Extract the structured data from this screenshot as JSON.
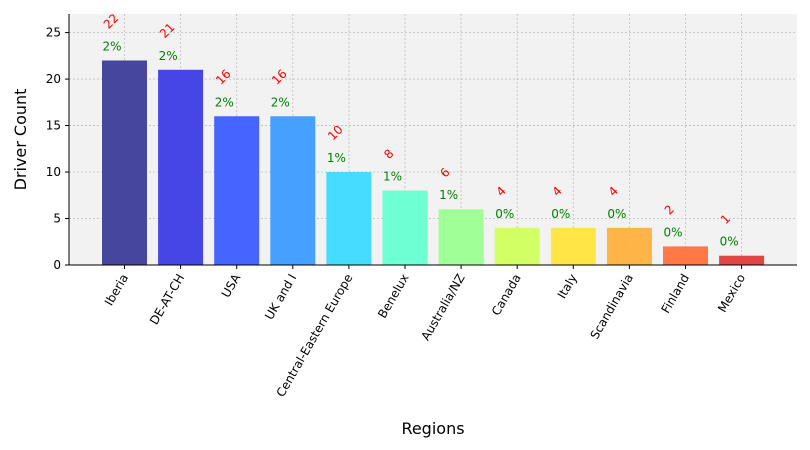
{
  "chart_data": {
    "type": "bar",
    "title": "",
    "xlabel": "Regions",
    "ylabel": "Driver Count",
    "categories": [
      "Iberia",
      "DE-AT-CH",
      "USA",
      "UK and I",
      "Central-Eastern Europe",
      "Benelux",
      "Australia/NZ",
      "Canada",
      "Italy",
      "Scandinavia",
      "Finland",
      "Mexico"
    ],
    "values": [
      22,
      21,
      16,
      16,
      10,
      8,
      6,
      4,
      4,
      4,
      2,
      1
    ],
    "value_labels": [
      "22",
      "21",
      "16",
      "16",
      "10",
      "8",
      "6",
      "4",
      "4",
      "4",
      "2",
      "1"
    ],
    "percent_labels": [
      "2%",
      "2%",
      "2%",
      "2%",
      "1%",
      "1%",
      "1%",
      "0%",
      "0%",
      "0%",
      "0%",
      "0%"
    ],
    "bar_colors": [
      "#46469e",
      "#4646e6",
      "#4664ff",
      "#46a0ff",
      "#46dcff",
      "#6effd2",
      "#a0ff96",
      "#d2ff64",
      "#ffe646",
      "#ffb446",
      "#ff7846",
      "#e04646"
    ],
    "value_label_color": "#ff0000",
    "percent_label_color": "#008000",
    "plot_background": "#f2f2f2",
    "ylim": [
      0,
      27
    ],
    "yticks": [
      0,
      5,
      10,
      15,
      20,
      25
    ],
    "grid": true,
    "legend": "none"
  }
}
